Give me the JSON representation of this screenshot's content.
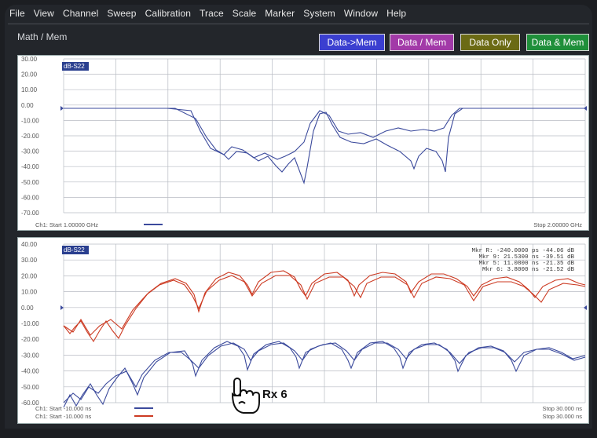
{
  "menu": [
    "File",
    "View",
    "Channel",
    "Sweep",
    "Calibration",
    "Trace",
    "Scale",
    "Marker",
    "System",
    "Window",
    "Help"
  ],
  "toolbar": {
    "title": "Math / Mem",
    "buttons": [
      {
        "label": "Data->Mem",
        "color": "#3b3fd0"
      },
      {
        "label": "Data / Mem",
        "color": "#a23aa8"
      },
      {
        "label": "Data Only",
        "color": "#6b6a14"
      },
      {
        "label": "Data & Mem",
        "color": "#1f8f3a"
      }
    ]
  },
  "top_plot": {
    "trace_label": "dB-S22",
    "y_ticks": [
      "30.00",
      "20.00",
      "10.00",
      "0.00",
      "-10.00",
      "-20.00",
      "-30.00",
      "-40.00",
      "-50.00",
      "-60.00",
      "-70.00"
    ],
    "start_label": "Ch1: Start  1.00000 GHz",
    "stop_label": "Stop  2.00000 GHz"
  },
  "bottom_plot": {
    "trace_label": "dB-S22",
    "y_ticks": [
      "40.00",
      "30.00",
      "20.00",
      "10.00",
      "0.00",
      "-10.00",
      "-20.00",
      "-30.00",
      "-40.00",
      "-50.00",
      "-60.00"
    ],
    "start_label_1": "Ch1: Start  -10.000 ns",
    "start_label_2": "Ch1: Start  -10.000 ns",
    "stop_label_1": "Stop  30.000 ns",
    "stop_label_2": "Stop  30.000 ns",
    "markers": [
      "Mkr R: -240.0000 ps  -44.06 dB",
      "Mkr 9:  21.5300 ns  -39.51 dB",
      "Mkr 5:  11.0800 ns  -21.35 dB",
      "Mkr 6:   3.8000 ns  -21.52 dB"
    ]
  },
  "callout": {
    "label": "Rx 6"
  },
  "colors": {
    "blue_trace": "#3b4a9c",
    "red_trace": "#cc3a22",
    "grid": "#b8bcc4"
  }
}
